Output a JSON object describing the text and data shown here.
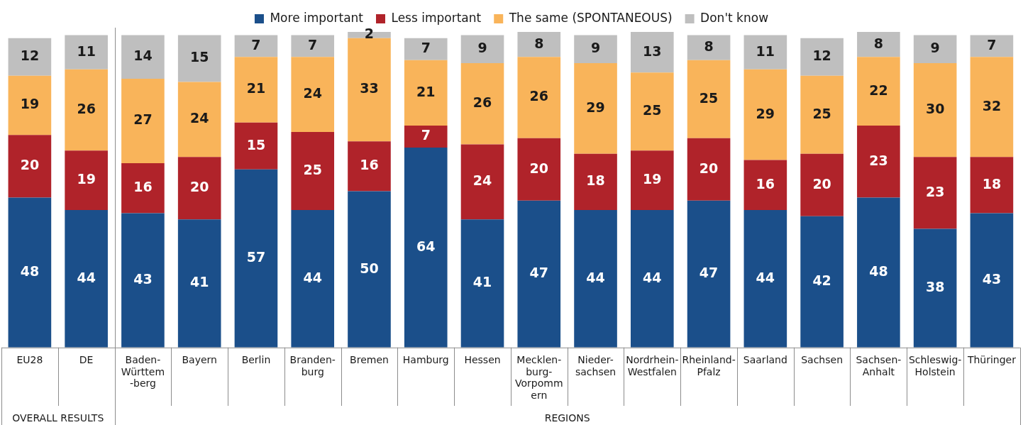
{
  "chart_data": {
    "type": "bar",
    "stacked": true,
    "data_labels": true,
    "legend": "top",
    "grid": false,
    "categories": [
      "EU28",
      "DE",
      "Baden-\nWürttem\n-berg",
      "Bayern",
      "Berlin",
      "Branden-\nburg",
      "Bremen",
      "Hamburg",
      "Hessen",
      "Mecklen-\nburg-\nVorpomm\nern",
      "Nieder-\nsachsen",
      "Nordrhein-\nWestfalen",
      "Rheinland-\nPfalz",
      "Saarland",
      "Sachsen",
      "Sachsen-\nAnhalt",
      "Schleswig-\nHolstein",
      "Thüringer"
    ],
    "series": [
      {
        "name": "More important",
        "color": "#1b4f8a",
        "values": [
          48,
          44,
          43,
          41,
          57,
          44,
          50,
          64,
          41,
          47,
          44,
          44,
          47,
          44,
          42,
          48,
          38,
          43
        ]
      },
      {
        "name": "Less important",
        "color": "#b0232a",
        "values": [
          20,
          19,
          16,
          20,
          15,
          25,
          16,
          7,
          24,
          20,
          18,
          19,
          20,
          16,
          20,
          23,
          23,
          18
        ]
      },
      {
        "name": "The same (SPONTANEOUS)",
        "color": "#f9b45a",
        "values": [
          19,
          26,
          27,
          24,
          21,
          24,
          33,
          21,
          26,
          26,
          29,
          25,
          25,
          29,
          25,
          22,
          30,
          32
        ]
      },
      {
        "name": "Don't know",
        "color": "#bfbfbf",
        "values": [
          12,
          11,
          14,
          15,
          7,
          7,
          2,
          7,
          9,
          8,
          9,
          13,
          8,
          11,
          12,
          8,
          9,
          7
        ]
      }
    ],
    "annotations": [
      "OVERALL RESULTS",
      "REGIONS"
    ]
  }
}
